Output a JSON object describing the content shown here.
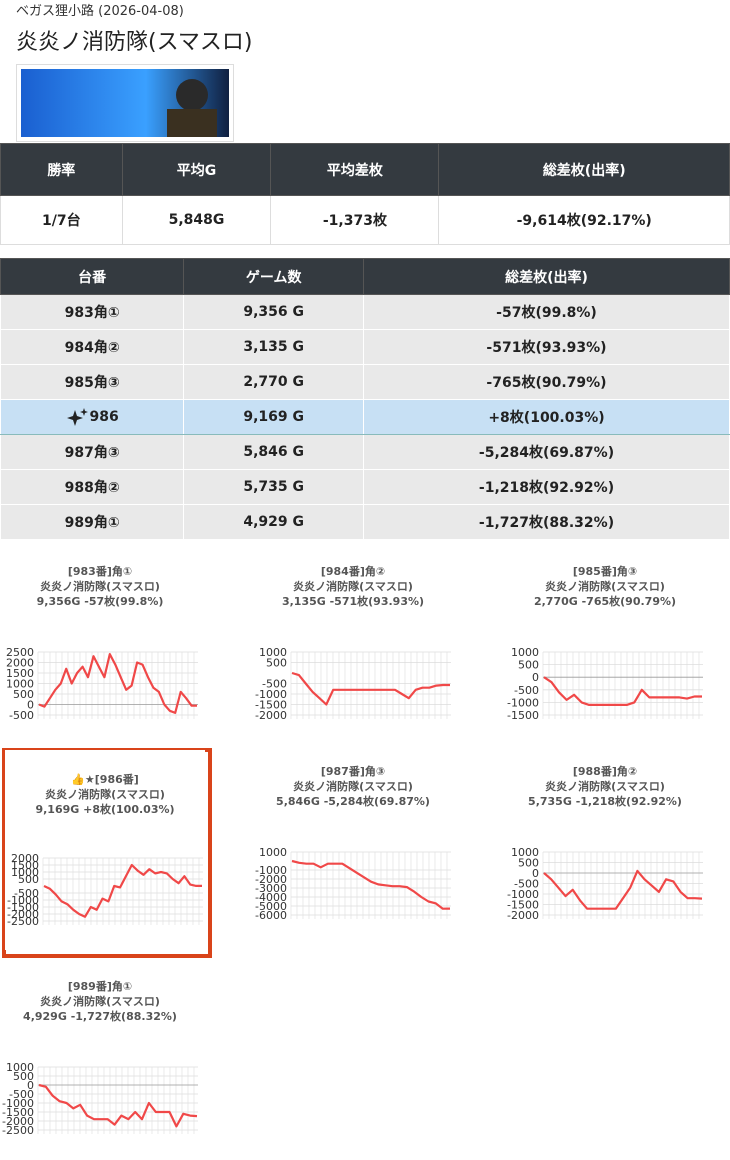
{
  "header": {
    "subtitle": "ベガス狸小路 (2026-04-08)",
    "title": "炎炎ノ消防隊(スマスロ)"
  },
  "summary": {
    "columns": [
      "勝率",
      "平均G",
      "平均差枚",
      "総差枚(出率)"
    ],
    "rows": [
      [
        "1/7台",
        "5,848G",
        "-1,373枚",
        "-9,614枚(92.17%)"
      ]
    ]
  },
  "machines": {
    "columns": [
      "台番",
      "ゲーム数",
      "総差枚(出率)"
    ],
    "highlight": 3,
    "rows": [
      [
        "983角①",
        "9,356 G",
        "-57枚(99.8%)"
      ],
      [
        "984角②",
        "3,135 G",
        "-571枚(93.93%)"
      ],
      [
        "985角③",
        "2,770 G",
        "-765枚(90.79%)"
      ],
      [
        "986",
        "9,169 G",
        "+8枚(100.03%)"
      ],
      [
        "987角③",
        "5,846 G",
        "-5,284枚(69.87%)"
      ],
      [
        "988角②",
        "5,735 G",
        "-1,218枚(92.92%)"
      ],
      [
        "989角①",
        "4,929 G",
        "-1,727枚(88.32%)"
      ]
    ]
  },
  "chart_data": [
    {
      "type": "line",
      "lines": [
        "[983番]角①",
        "炎炎ノ消防隊(スマスロ)",
        "9,356G -57枚(99.8%)"
      ],
      "color": "#f04848",
      "ylim": [
        -500,
        2500
      ],
      "yticks": [
        2500,
        2000,
        1500,
        1000,
        500,
        0,
        -500
      ],
      "values": [
        0,
        -100,
        300,
        700,
        1000,
        1700,
        1000,
        1500,
        1800,
        1300,
        2300,
        1800,
        1300,
        2400,
        1900,
        1300,
        700,
        900,
        2000,
        1900,
        1300,
        800,
        600,
        0,
        -300,
        -400,
        600,
        300,
        -57,
        -57
      ]
    },
    {
      "type": "line",
      "lines": [
        "[984番]角②",
        "炎炎ノ消防隊(スマスロ)",
        "3,135G -571枚(93.93%)"
      ],
      "color": "#f04848",
      "ylim": [
        -2000,
        1000
      ],
      "yticks": [
        1000,
        500,
        -500,
        -1000,
        -1500,
        -2000
      ],
      "values": [
        0,
        -100,
        -500,
        -900,
        -1200,
        -1500,
        -800,
        -800,
        -800,
        -800,
        -800,
        -800,
        -800,
        -800,
        -800,
        -800,
        -1000,
        -1200,
        -800,
        -700,
        -700,
        -600,
        -571,
        -571
      ]
    },
    {
      "type": "line",
      "lines": [
        "[985番]角③",
        "炎炎ノ消防隊(スマスロ)",
        "2,770G -765枚(90.79%)"
      ],
      "color": "#f04848",
      "ylim": [
        -1500,
        1000
      ],
      "yticks": [
        1000,
        500,
        0,
        -500,
        -1000,
        -1500
      ],
      "values": [
        0,
        -200,
        -600,
        -900,
        -700,
        -1000,
        -1100,
        -1100,
        -1100,
        -1100,
        -1100,
        -1100,
        -1000,
        -500,
        -800,
        -800,
        -800,
        -800,
        -800,
        -850,
        -765,
        -765
      ]
    },
    {
      "type": "line",
      "lines": [
        "👍★[986番]",
        "炎炎ノ消防隊(スマスロ)",
        "9,169G +8枚(100.03%)"
      ],
      "color": "#f04848",
      "ylim": [
        -2500,
        2000
      ],
      "yticks": [
        2000,
        1500,
        1000,
        500,
        -500,
        -1000,
        -1500,
        -2000,
        -2500
      ],
      "values": [
        0,
        -200,
        -600,
        -1100,
        -1300,
        -1700,
        -2000,
        -2200,
        -1500,
        -1700,
        -900,
        -1100,
        0,
        -100,
        700,
        1500,
        1100,
        800,
        1200,
        900,
        1000,
        900,
        500,
        200,
        700,
        100,
        8,
        8
      ]
    },
    {
      "type": "line",
      "lines": [
        "[987番]角③",
        "炎炎ノ消防隊(スマスロ)",
        "5,846G -5,284枚(69.87%)"
      ],
      "color": "#f04848",
      "ylim": [
        -6000,
        1000
      ],
      "yticks": [
        1000,
        -1000,
        -2000,
        -3000,
        -4000,
        -5000,
        -6000
      ],
      "values": [
        0,
        -200,
        -300,
        -300,
        -700,
        -300,
        -300,
        -300,
        -800,
        -1300,
        -1800,
        -2300,
        -2600,
        -2700,
        -2800,
        -2800,
        -2900,
        -3400,
        -4000,
        -4500,
        -4700,
        -5300,
        -5284
      ]
    },
    {
      "type": "line",
      "lines": [
        "[988番]角②",
        "炎炎ノ消防隊(スマスロ)",
        "5,735G -1,218枚(92.92%)"
      ],
      "color": "#f04848",
      "ylim": [
        -2000,
        1000
      ],
      "yticks": [
        1000,
        500,
        0,
        -500,
        -1000,
        -1500,
        -2000
      ],
      "values": [
        0,
        -300,
        -700,
        -1100,
        -800,
        -1300,
        -1700,
        -1700,
        -1700,
        -1700,
        -1700,
        -1200,
        -700,
        100,
        -300,
        -600,
        -900,
        -300,
        -400,
        -900,
        -1200,
        -1200,
        -1218
      ]
    },
    {
      "type": "line",
      "lines": [
        "[989番]角①",
        "炎炎ノ消防隊(スマスロ)",
        "4,929G -1,727枚(88.32%)"
      ],
      "color": "#f04848",
      "ylim": [
        -2500,
        1000
      ],
      "yticks": [
        1000,
        500,
        0,
        -500,
        -1000,
        -1500,
        -2000,
        -2500
      ],
      "values": [
        0,
        -100,
        -600,
        -900,
        -1000,
        -1300,
        -1100,
        -1700,
        -1900,
        -1900,
        -1900,
        -2200,
        -1700,
        -1900,
        -1500,
        -1900,
        -1000,
        -1500,
        -1500,
        -1500,
        -2300,
        -1600,
        -1700,
        -1727
      ]
    }
  ]
}
